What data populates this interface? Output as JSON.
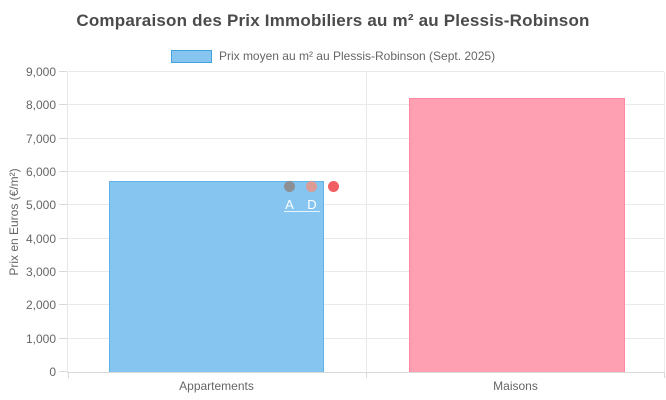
{
  "chart_data": {
    "type": "bar",
    "title": "Comparaison des Prix Immobiliers au m² au Plessis-Robinson",
    "categories": [
      "Appartements",
      "Maisons"
    ],
    "series": [
      {
        "name": "Prix moyen au m² au Plessis-Robinson (Sept. 2025)",
        "values": [
          5727,
          8222
        ]
      }
    ],
    "values": [
      5727,
      8222
    ],
    "xlabel": "",
    "ylabel": "Prix en Euros (€/m²)",
    "ylim": [
      0,
      9000
    ],
    "ytick_step": 1000,
    "ytick_labels": [
      "0",
      "1,000",
      "2,000",
      "3,000",
      "4,000",
      "5,000",
      "6,000",
      "7,000",
      "8,000",
      "9,000"
    ],
    "grid": true,
    "legend_position": "top",
    "bar_colors": {
      "fill": [
        "#85c5f0",
        "#ff9fb2"
      ],
      "border": [
        "#5fb2ea",
        "#ff87a1"
      ]
    }
  },
  "legend": {
    "label": "Prix moyen au m² au Plessis-Robinson (Sept. 2025)",
    "swatch_fill": "#85c5f0",
    "swatch_border": "#44a1df"
  },
  "overlay": {
    "markers": [
      {
        "label": "A",
        "color": "#8c9095"
      },
      {
        "label": "D",
        "color": "#dc9b95"
      },
      {
        "label": "",
        "color": "#f25f63"
      }
    ],
    "label_color": "#ffffff"
  }
}
